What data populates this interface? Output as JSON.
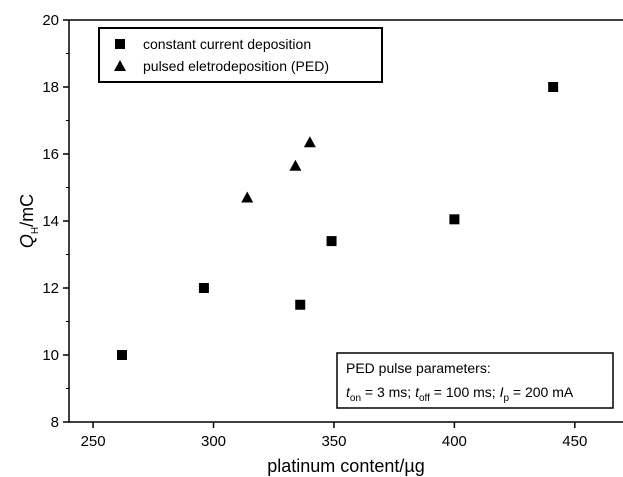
{
  "chart_data": {
    "type": "scatter",
    "xlabel": "platinum content/µg",
    "ylabel": {
      "main": "Q",
      "sub": "H",
      "unit": "/mC"
    },
    "xlim": [
      240,
      470
    ],
    "ylim": [
      8,
      20
    ],
    "x_ticks": [
      250,
      300,
      350,
      400,
      450
    ],
    "y_ticks": [
      8,
      10,
      12,
      14,
      16,
      18,
      20
    ],
    "grid": false,
    "legend_position": "top-left",
    "series": [
      {
        "name": "constant current deposition",
        "marker": "square",
        "points": [
          {
            "x": 262,
            "y": 10.0
          },
          {
            "x": 296,
            "y": 12.0
          },
          {
            "x": 336,
            "y": 11.5
          },
          {
            "x": 349,
            "y": 13.4
          },
          {
            "x": 400,
            "y": 14.05
          },
          {
            "x": 441,
            "y": 18.0
          }
        ]
      },
      {
        "name": "pulsed eletrodeposition (PED)",
        "marker": "triangle",
        "points": [
          {
            "x": 314,
            "y": 14.7
          },
          {
            "x": 334,
            "y": 15.65
          },
          {
            "x": 340,
            "y": 16.35
          }
        ]
      }
    ],
    "annotation": {
      "title": "PED pulse parameters:",
      "t_on_var": "t",
      "t_on_sub": "on",
      "t_on_val": " = 3 ms; ",
      "t_off_var": "t",
      "t_off_sub": "off",
      "t_off_val": " = 100 ms; ",
      "i_p_var": "I",
      "i_p_sub": "p",
      "i_p_val": " = 200 mA"
    }
  }
}
